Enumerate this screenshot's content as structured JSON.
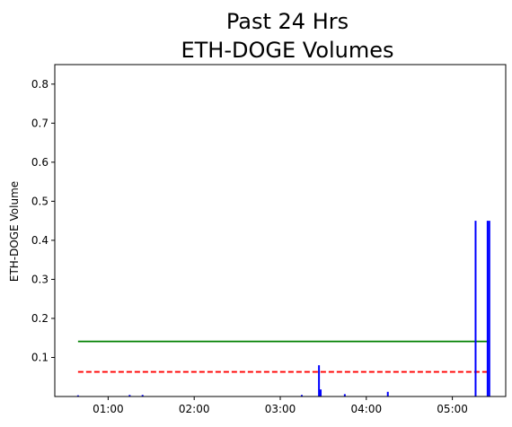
{
  "chart_data": {
    "type": "bar",
    "title_lines": [
      "Past 24 Hrs",
      "ETH-DOGE Volumes"
    ],
    "ylabel": "ETH-DOGE Volume",
    "xlabel": "",
    "xlim": [
      0.38,
      5.62
    ],
    "ylim": [
      0.0,
      0.85
    ],
    "xticks": [
      {
        "value": 1.0,
        "label": "01:00"
      },
      {
        "value": 2.0,
        "label": "02:00"
      },
      {
        "value": 3.0,
        "label": "03:00"
      },
      {
        "value": 4.0,
        "label": "04:00"
      },
      {
        "value": 5.0,
        "label": "05:00"
      }
    ],
    "yticks": [
      {
        "value": 0.1,
        "label": "0.1"
      },
      {
        "value": 0.2,
        "label": "0.2"
      },
      {
        "value": 0.3,
        "label": "0.3"
      },
      {
        "value": 0.4,
        "label": "0.4"
      },
      {
        "value": 0.5,
        "label": "0.5"
      },
      {
        "value": 0.6,
        "label": "0.6"
      },
      {
        "value": 0.7,
        "label": "0.7"
      },
      {
        "value": 0.8,
        "label": "0.8"
      }
    ],
    "grid": false,
    "bars": {
      "color": "#0000ff",
      "points": [
        {
          "x": 0.65,
          "y": 0.003
        },
        {
          "x": 1.25,
          "y": 0.004
        },
        {
          "x": 1.4,
          "y": 0.004
        },
        {
          "x": 3.25,
          "y": 0.004
        },
        {
          "x": 3.45,
          "y": 0.08
        },
        {
          "x": 3.47,
          "y": 0.018
        },
        {
          "x": 3.75,
          "y": 0.006
        },
        {
          "x": 4.25,
          "y": 0.012
        },
        {
          "x": 5.27,
          "y": 0.45
        },
        {
          "x": 5.41,
          "y": 0.45
        },
        {
          "x": 5.43,
          "y": 0.45
        }
      ]
    },
    "reference_lines": [
      {
        "y": 0.141,
        "x_start": 0.65,
        "x_end": 5.43,
        "color": "#008000",
        "style": "solid"
      },
      {
        "y": 0.063,
        "x_start": 0.65,
        "x_end": 5.43,
        "color": "#ff0000",
        "style": "dashed"
      }
    ]
  }
}
